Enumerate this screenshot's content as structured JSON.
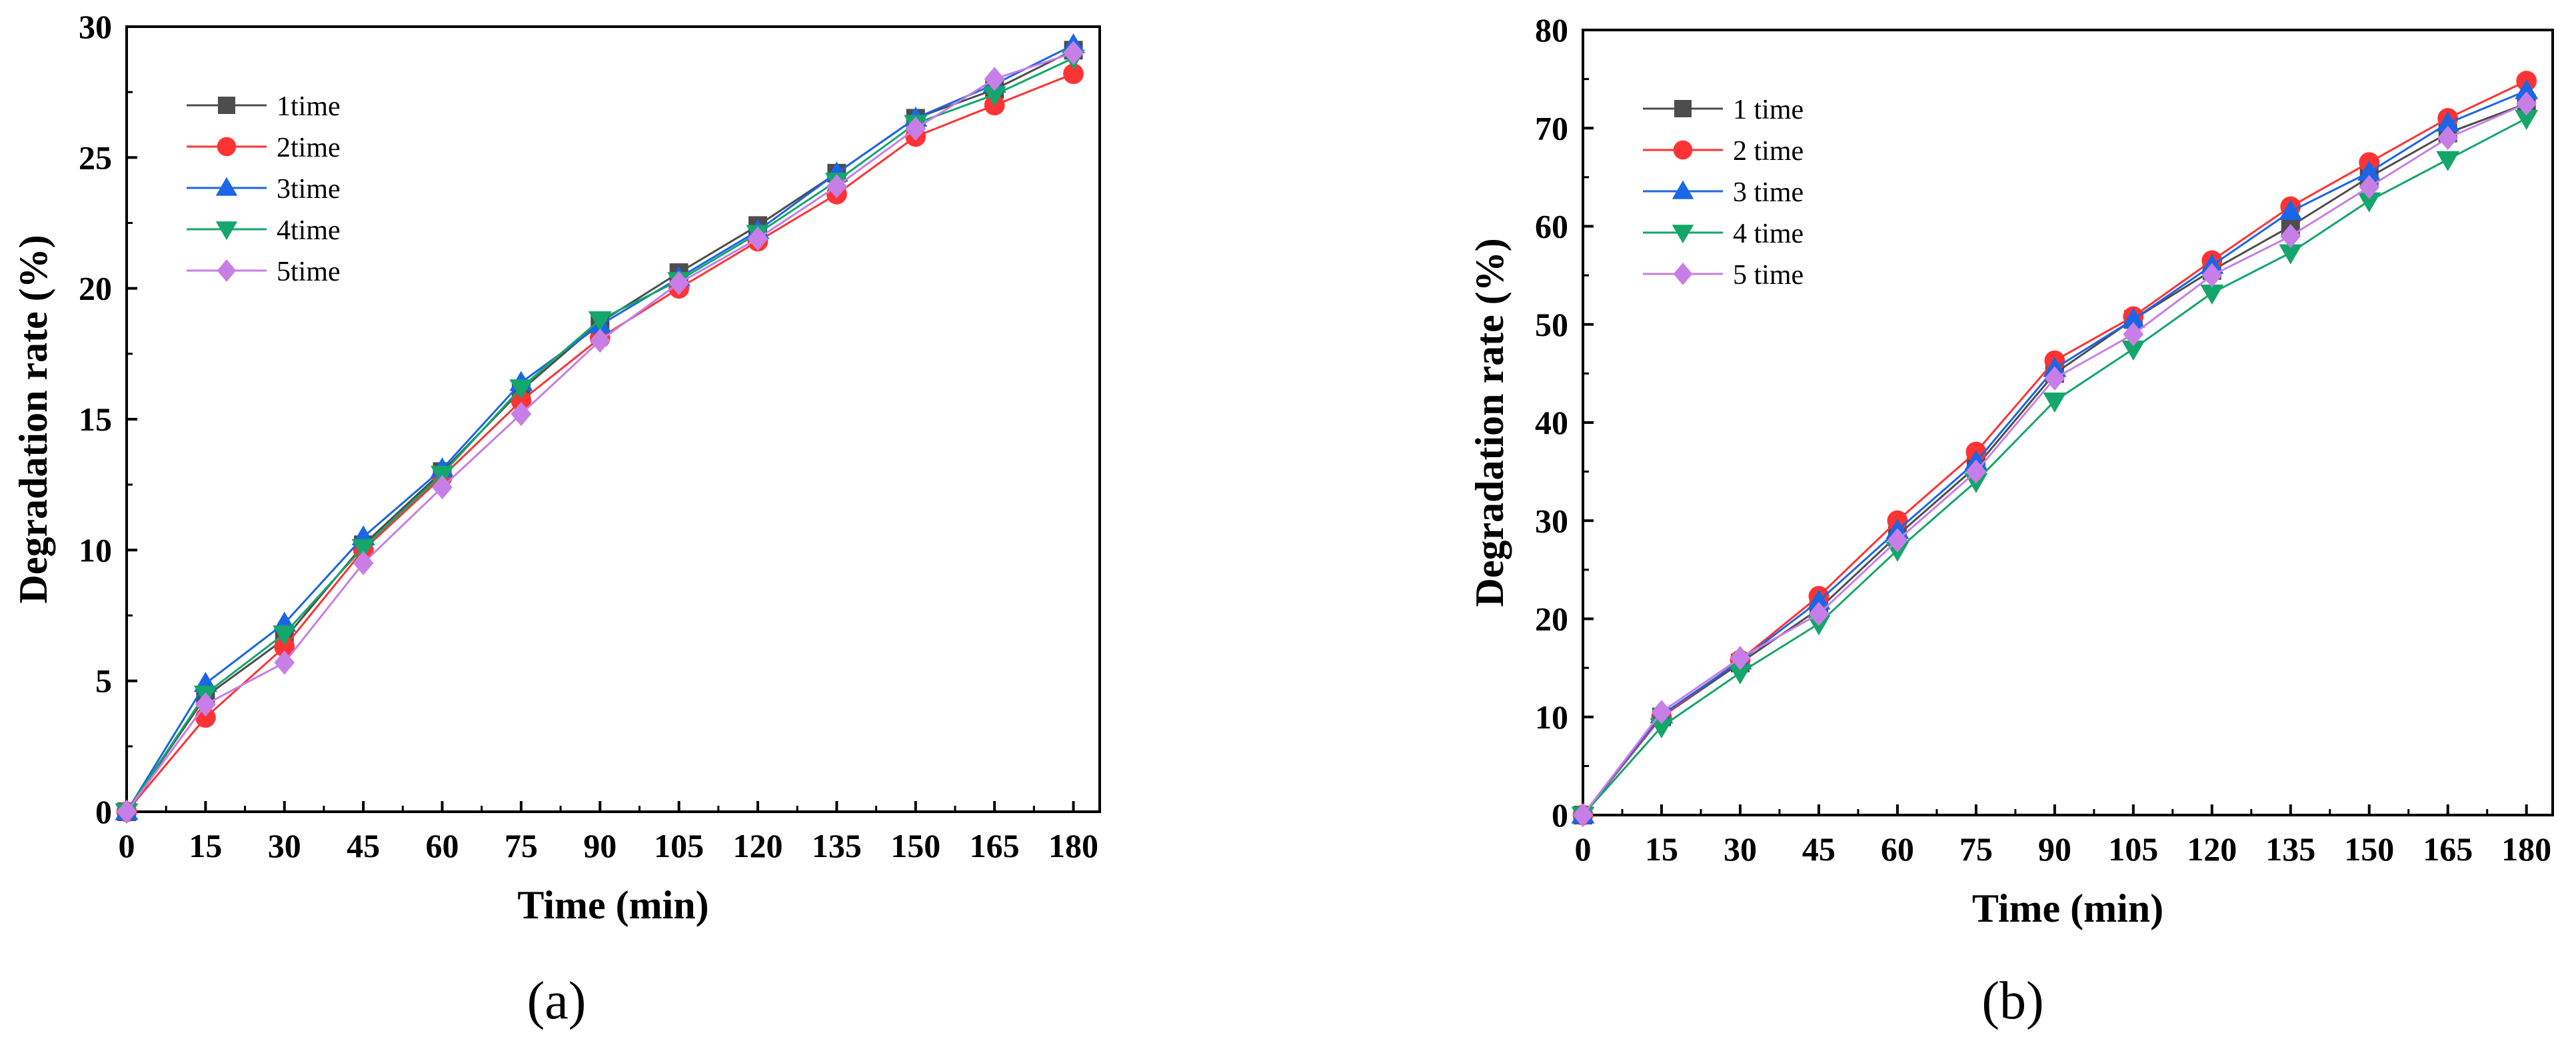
{
  "colors": {
    "series": [
      "#4d4d4d",
      "#ff3333",
      "#1a66e6",
      "#14a66a",
      "#c77ee6"
    ],
    "axis": "#000000",
    "background": "#ffffff"
  },
  "chart_data": [
    {
      "type": "line",
      "panel_label": "(a)",
      "xlabel": "Time (min)",
      "ylabel": "Degradation rate (%)",
      "x": [
        0,
        15,
        30,
        45,
        60,
        75,
        90,
        105,
        120,
        135,
        150,
        165,
        180
      ],
      "xlim": [
        0,
        185
      ],
      "ylim": [
        0,
        30
      ],
      "xticks": [
        0,
        15,
        30,
        45,
        60,
        75,
        90,
        105,
        120,
        135,
        150,
        165,
        180
      ],
      "yticks": [
        0,
        5,
        10,
        15,
        20,
        25,
        30
      ],
      "legend_position": "top-left",
      "series": [
        {
          "name": "1time",
          "marker": "square",
          "values": [
            0,
            4.4,
            6.6,
            10.2,
            13.0,
            16.1,
            18.7,
            20.6,
            22.4,
            24.4,
            26.5,
            27.6,
            29.1
          ]
        },
        {
          "name": "2time",
          "marker": "circle",
          "values": [
            0,
            3.6,
            6.3,
            10.0,
            12.8,
            15.7,
            18.1,
            20.0,
            21.8,
            23.6,
            25.8,
            27.0,
            28.2
          ]
        },
        {
          "name": "3time",
          "marker": "triangle-up",
          "values": [
            0,
            4.9,
            7.2,
            10.5,
            13.1,
            16.4,
            18.6,
            20.4,
            22.2,
            24.4,
            26.5,
            27.8,
            29.3
          ]
        },
        {
          "name": "4time",
          "marker": "triangle-down",
          "values": [
            0,
            4.5,
            6.8,
            10.1,
            12.9,
            16.2,
            18.8,
            20.3,
            22.1,
            24.1,
            26.3,
            27.4,
            28.8
          ]
        },
        {
          "name": "5time",
          "marker": "diamond",
          "values": [
            0,
            4.1,
            5.7,
            9.5,
            12.4,
            15.2,
            18.0,
            20.2,
            21.9,
            23.9,
            26.1,
            28.0,
            29.0
          ]
        }
      ]
    },
    {
      "type": "line",
      "panel_label": "(b)",
      "xlabel": "Time (min)",
      "ylabel": "Degradation rate (%)",
      "x": [
        0,
        15,
        30,
        45,
        60,
        75,
        90,
        105,
        120,
        135,
        150,
        165,
        180
      ],
      "xlim": [
        0,
        185
      ],
      "ylim": [
        0,
        80
      ],
      "xticks": [
        0,
        15,
        30,
        45,
        60,
        75,
        90,
        105,
        120,
        135,
        150,
        165,
        180
      ],
      "yticks": [
        0,
        10,
        20,
        30,
        40,
        50,
        60,
        70,
        80
      ],
      "legend_position": "top-left",
      "series": [
        {
          "name": "1 time",
          "marker": "square",
          "values": [
            0,
            10.0,
            15.5,
            21.0,
            28.5,
            35.5,
            45.0,
            50.5,
            55.5,
            60.0,
            65.0,
            69.5,
            72.5
          ]
        },
        {
          "name": "2 time",
          "marker": "circle",
          "values": [
            0,
            10.0,
            15.8,
            22.3,
            30.0,
            37.0,
            46.3,
            50.8,
            56.5,
            62.0,
            66.5,
            71.0,
            74.8
          ]
        },
        {
          "name": "3 time",
          "marker": "triangle-up",
          "values": [
            0,
            10.2,
            15.7,
            21.8,
            29.0,
            36.0,
            45.5,
            50.5,
            56.0,
            61.5,
            65.5,
            70.5,
            73.8
          ]
        },
        {
          "name": "4 time",
          "marker": "triangle-down",
          "values": [
            0,
            9.0,
            14.5,
            19.5,
            27.0,
            34.0,
            42.2,
            47.5,
            53.2,
            57.3,
            62.6,
            66.8,
            71.0
          ]
        },
        {
          "name": "5 time",
          "marker": "diamond",
          "values": [
            0,
            10.5,
            16.0,
            20.5,
            28.0,
            35.0,
            44.5,
            49.0,
            55.0,
            59.0,
            64.0,
            69.0,
            72.5
          ]
        }
      ]
    }
  ]
}
